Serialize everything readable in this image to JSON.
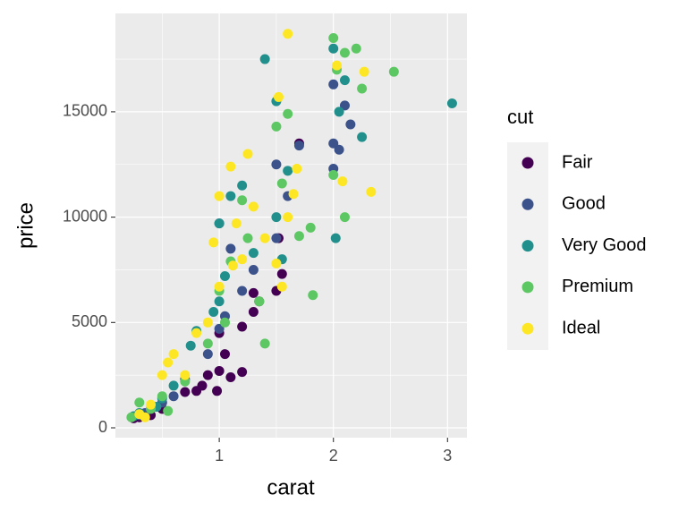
{
  "chart_data": {
    "type": "scatter",
    "x_label": "carat",
    "y_label": "price",
    "legend_title": "cut",
    "xlim": [
      0.09,
      3.17
    ],
    "ylim": [
      -467,
      19669
    ],
    "xticks": [
      1,
      2,
      3
    ],
    "yticks": [
      0,
      5000,
      10000,
      15000
    ],
    "minor_xticks": [
      0.5,
      1.5,
      2.5
    ],
    "minor_yticks": [
      2500,
      7500,
      12500,
      17500
    ],
    "grid": true,
    "legend_position": "right",
    "series": [
      {
        "name": "Fair",
        "color": "#440154",
        "x": [
          0.3,
          0.7,
          0.8,
          0.9,
          0.98,
          1.0,
          1.1,
          1.2,
          1.05,
          1.3,
          1.35,
          1.5,
          1.55,
          1.0,
          1.2,
          1.7,
          0.5,
          0.4,
          0.85,
          1.52,
          1.3,
          0.25
        ],
        "values": [
          500,
          1700,
          1750,
          2500,
          1750,
          2700,
          2400,
          2650,
          3500,
          5500,
          6000,
          6500,
          7300,
          4500,
          4800,
          13500,
          900,
          600,
          2000,
          9000,
          6400,
          450
        ]
      },
      {
        "name": "Good",
        "color": "#3b528b",
        "x": [
          0.3,
          0.35,
          0.5,
          0.7,
          0.9,
          1.0,
          1.0,
          1.1,
          1.2,
          1.5,
          1.5,
          2.0,
          2.0,
          2.0,
          2.1,
          2.15,
          1.7,
          1.05,
          1.3,
          1.6,
          0.6,
          2.05
        ],
        "values": [
          600,
          700,
          1200,
          2300,
          3500,
          4700,
          9700,
          8500,
          6500,
          9000,
          12500,
          13500,
          12300,
          16300,
          15300,
          14400,
          13400,
          5300,
          7500,
          11000,
          1500,
          13200
        ]
      },
      {
        "name": "Very Good",
        "color": "#21908c",
        "x": [
          0.25,
          0.3,
          0.45,
          0.6,
          0.75,
          0.8,
          0.95,
          1.0,
          1.05,
          1.1,
          1.2,
          1.4,
          1.5,
          1.5,
          1.55,
          2.0,
          2.02,
          2.05,
          2.25,
          3.04,
          2.1,
          1.0,
          1.3,
          1.6,
          0.5
        ],
        "values": [
          550,
          700,
          1000,
          2000,
          3900,
          4600,
          5500,
          9700,
          7200,
          11000,
          11500,
          17500,
          15500,
          10000,
          8000,
          18000,
          9000,
          15000,
          13800,
          15400,
          16500,
          6000,
          8300,
          12200,
          1400
        ]
      },
      {
        "name": "Premium",
        "color": "#5dc863",
        "x": [
          0.23,
          0.3,
          0.4,
          0.5,
          0.55,
          0.7,
          0.9,
          1.0,
          1.1,
          1.2,
          1.25,
          1.4,
          1.5,
          1.6,
          1.7,
          1.8,
          1.82,
          2.0,
          2.03,
          2.1,
          2.2,
          2.25,
          2.53,
          2.1,
          2.0,
          1.05,
          1.35,
          1.55
        ],
        "values": [
          500,
          1200,
          900,
          1500,
          800,
          2200,
          4000,
          6500,
          7900,
          10800,
          9000,
          4000,
          14300,
          14900,
          9100,
          9500,
          6300,
          18500,
          17000,
          17800,
          18000,
          16100,
          16900,
          10000,
          12000,
          5000,
          6000,
          11600
        ]
      },
      {
        "name": "Ideal",
        "color": "#fde725",
        "x": [
          0.3,
          0.35,
          0.4,
          0.5,
          0.55,
          0.6,
          0.7,
          0.8,
          0.9,
          0.95,
          1.0,
          1.1,
          1.15,
          1.2,
          1.25,
          1.3,
          1.4,
          1.5,
          1.52,
          1.55,
          1.6,
          1.6,
          1.68,
          1.65,
          2.03,
          2.08,
          2.33,
          2.27,
          1.0,
          1.12
        ],
        "values": [
          650,
          500,
          1100,
          2500,
          3100,
          3500,
          2500,
          4500,
          5000,
          8800,
          6700,
          12400,
          9700,
          8000,
          13000,
          10500,
          9000,
          7800,
          15700,
          6700,
          10000,
          18700,
          12300,
          11100,
          17200,
          11700,
          11200,
          16900,
          11000,
          7700
        ]
      }
    ]
  }
}
